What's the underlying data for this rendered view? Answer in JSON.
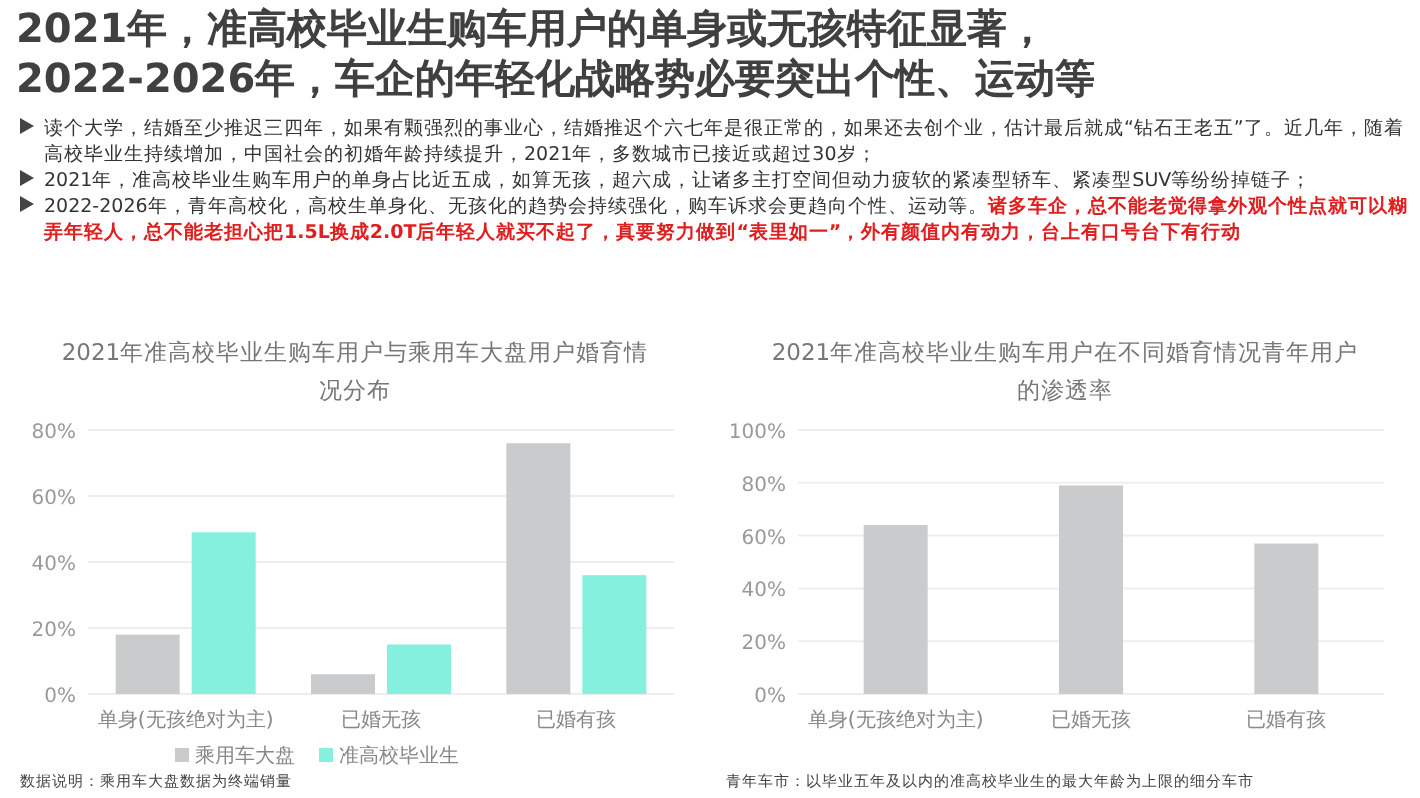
{
  "chart_data": [
    {
      "type": "other",
      "title": "2021年，准高校毕业生购车用户的单身或无孩特征显著，",
      "subtitle": "2022-2026年，车企的年轻化战略势必要突出个性、运动等",
      "annotations": [
        "读个大学，结婚至少推迟三四年，如果有颗强烈的事业心，结婚推迟个六七年是很正常的，如果还去创个业，估计最后就成“钻石王老五”了。近几年，随着高校毕业生持续增加，中国社会的初婚年龄持续提升，2021年，多数城市已接近或超过30岁；",
        "2021年，准高校毕业生购车用户的单身占比近五成，如算无孩，超六成，让诸多主打空间但动力疲软的紧凑型轿车、紧凑型SUV等纷纷掉链子；",
        "2022-2026年，青年高校化，高校生单身化、无孩化的趋势会持续强化，购车诉求会更趋向个性、运动等。",
        "诸多车企，总不能老觉得拿外观个性点就可以糊弄年轻人，总不能老担心把1.5L换成2.0T后年轻人就买不起了，真要努力做到“表里如一”，外有颜值内有动力，台上有口号台下有行动"
      ]
    },
    {
      "type": "bar",
      "title": "2021年准高校毕业生购车用户与乘用车大盘用户婚育情况分布",
      "categories": [
        "单身(无孩绝对为主)",
        "已婚无孩",
        "已婚有孩"
      ],
      "series": [
        {
          "name": "乘用车大盘",
          "color": "#c9cbcd",
          "values": [
            18,
            6,
            76
          ]
        },
        {
          "name": "准高校毕业生",
          "color": "#84f0dd",
          "values": [
            49,
            15,
            36
          ]
        }
      ],
      "ylim": [
        0,
        80
      ],
      "yticks": [
        {
          "value": 0,
          "label": "0%"
        },
        {
          "value": 20,
          "label": "20%"
        },
        {
          "value": 40,
          "label": "40%"
        },
        {
          "value": 60,
          "label": "60%"
        },
        {
          "value": 80,
          "label": "80%"
        }
      ],
      "grid": "y",
      "legend": "bottom",
      "annotations": [
        "数据说明：乘用车大盘数据为终端销量"
      ]
    },
    {
      "type": "bar",
      "title": "2021年准高校毕业生购车用户在不同婚育情况青年用户的渗透率",
      "categories": [
        "单身(无孩绝对为主)",
        "已婚无孩",
        "已婚有孩"
      ],
      "values": [
        64,
        79,
        57
      ],
      "color": "#c9cbcd",
      "ylim": [
        0,
        100
      ],
      "yticks": [
        {
          "value": 0,
          "label": "0%"
        },
        {
          "value": 20,
          "label": "20%"
        },
        {
          "value": 40,
          "label": "40%"
        },
        {
          "value": 60,
          "label": "60%"
        },
        {
          "value": 80,
          "label": "80%"
        },
        {
          "value": 100,
          "label": "100%"
        }
      ],
      "grid": "y",
      "annotations": [
        "青年车市：以毕业五年及以内的准高校毕业生的最大年龄为上限的细分车市"
      ]
    }
  ]
}
